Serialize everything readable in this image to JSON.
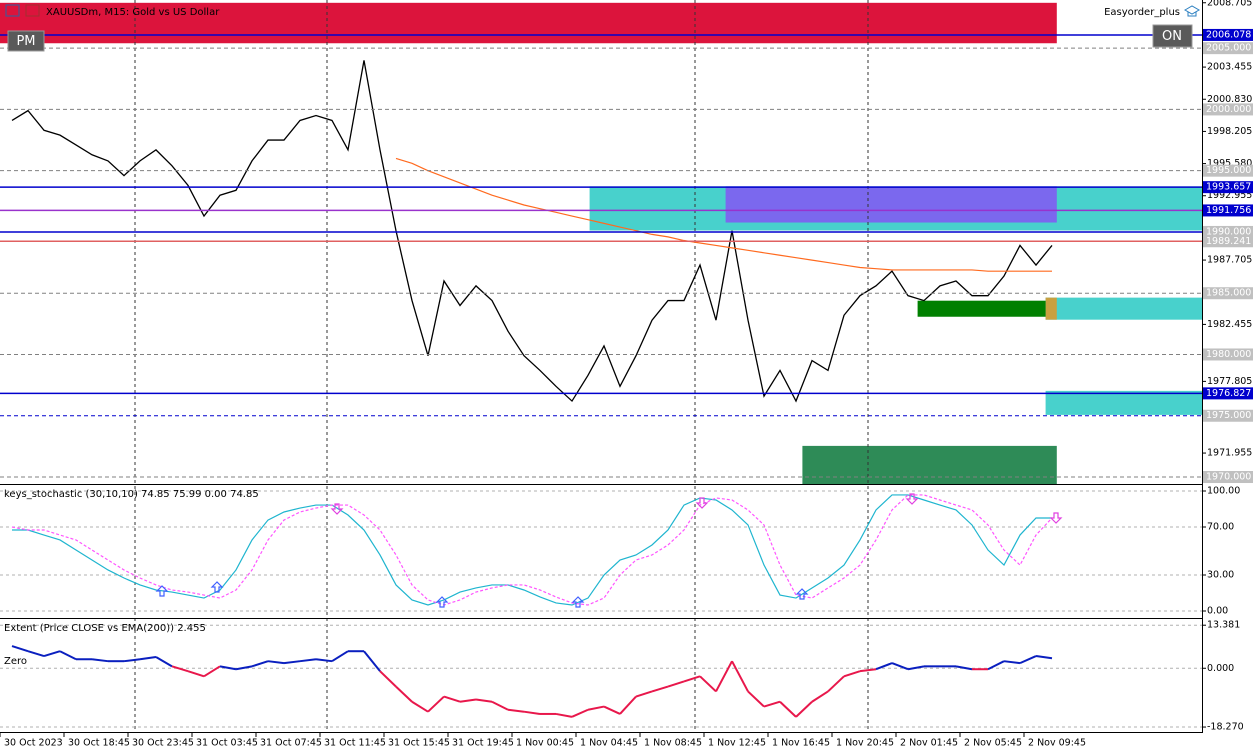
{
  "toolbar": {
    "session": "PM",
    "switch": "ON",
    "expert": "Easyorder_plus"
  },
  "chart_data": [
    {
      "type": "line",
      "title": "XAUUSDm, M15: Gold vs US Dollar",
      "categories": [
        null,
        "30 Oct 2023",
        null,
        null,
        null,
        "30 Oct 18:45",
        null,
        null,
        null,
        "30 Oct 23:45",
        null,
        null,
        null,
        "31 Oct 03:45",
        null,
        null,
        null,
        "31 Oct 07:45",
        null,
        null,
        null,
        "31 Oct 11:45",
        null,
        null,
        null,
        "31 Oct 15:45",
        null,
        null,
        null,
        "31 Oct 19:45",
        null,
        null,
        null,
        "1 Nov 00:45",
        null,
        null,
        null,
        "1 Nov 04:45",
        null,
        null,
        null,
        "1 Nov 08:45",
        null,
        null,
        null,
        "1 Nov 12:45",
        null,
        null,
        null,
        "1 Nov 16:45",
        null,
        null,
        null,
        "1 Nov 20:45",
        null,
        null,
        null,
        "2 Nov 01:45",
        null,
        null,
        null,
        "2 Nov 05:45",
        null,
        null,
        null,
        "2 Nov 09:45"
      ],
      "series": [
        {
          "color": "#000000",
          "values": [
            1999.1,
            1999.9,
            1998.3,
            1997.9,
            1997.1,
            1996.3,
            1995.8,
            1994.6,
            1995.8,
            1996.7,
            1995.4,
            1993.8,
            1991.3,
            1993.0,
            1993.4,
            1995.8,
            1997.5,
            1997.5,
            1999.1,
            1999.5,
            1999.1,
            1996.7,
            2004.0,
            1996.7,
            1990.1,
            1984.4,
            1979.9,
            1986.0,
            1984.0,
            1985.6,
            1984.4,
            1981.9,
            1979.9,
            1978.7,
            1977.4,
            1976.2,
            1978.3,
            1980.7,
            1977.4,
            1979.9,
            1982.8,
            1984.4,
            1984.4,
            1987.3,
            1982.8,
            1990.1,
            1982.8,
            1976.6,
            1978.7,
            1976.2,
            1979.5,
            1978.7,
            1983.2,
            1984.8,
            1985.6,
            1986.8,
            1984.8,
            1984.4,
            1985.6,
            1986.0,
            1984.8,
            1984.8,
            1986.4,
            1988.9,
            1987.3,
            1988.9
          ]
        },
        {
          "color": "#ff6a1f",
          "values": [
            null,
            null,
            null,
            null,
            null,
            null,
            null,
            null,
            null,
            null,
            null,
            null,
            null,
            null,
            null,
            null,
            null,
            null,
            null,
            null,
            null,
            null,
            null,
            null,
            1996.0,
            1995.6,
            1995.0,
            1994.5,
            1994.0,
            1993.5,
            1993.0,
            1992.6,
            1992.2,
            1991.9,
            1991.6,
            1991.3,
            1991.0,
            1990.7,
            1990.4,
            1990.1,
            1989.8,
            1989.6,
            1989.3,
            1989.1,
            1988.9,
            1988.7,
            1988.5,
            1988.3,
            1988.1,
            1987.9,
            1987.7,
            1987.5,
            1987.3,
            1987.1,
            1987.0,
            1986.9,
            1986.9,
            1986.9,
            1986.9,
            1986.9,
            1986.9,
            1986.8,
            1986.8,
            1986.8,
            1986.8,
            1986.8
          ]
        }
      ],
      "ylim": [
        1969.43,
        2008.93
      ],
      "yticks": [
        2008.705,
        2003.455,
        {
          "value": 2000.83,
          "label": "2000.830"
        },
        1998.205,
        {
          "value": 1995.58,
          "label": "1995.580"
        },
        1992.955,
        1987.705,
        1982.455,
        1977.805,
        1971.955
      ],
      "zones": [
        {
          "ylim": [
            2005.4,
            2008.7
          ],
          "x": [
            -0.75,
            65.3
          ],
          "color": "#dc143c"
        },
        {
          "ylim": [
            1990.12,
            1993.72
          ],
          "x": [
            36.1,
            74.4
          ],
          "color": "#48d1cc"
        },
        {
          "ylim": [
            1990.77,
            1993.72
          ],
          "x": [
            44.6,
            65.3
          ],
          "color": "#7b68ee"
        },
        {
          "ylim": [
            1982.84,
            1984.64
          ],
          "x": [
            64.6,
            74.4
          ],
          "color": "#48d1cc"
        },
        {
          "ylim": [
            1982.84,
            1984.64
          ],
          "x": [
            64.6,
            65.3
          ],
          "color": "#c8a040"
        },
        {
          "ylim": [
            1983.08,
            1984.39
          ],
          "x": [
            56.6,
            64.6
          ],
          "color": "#008000"
        },
        {
          "ylim": [
            1975.07,
            1977.03
          ],
          "x": [
            64.6,
            74.4
          ],
          "color": "#48d1cc"
        },
        {
          "ylim": [
            1969.43,
            1972.54
          ],
          "x": [
            49.4,
            65.3
          ],
          "color": "#2e8b57"
        }
      ],
      "levels": [
        {
          "value": 2006.078,
          "label": "2006.078",
          "color": "#0000cd",
          "dash": false,
          "box_color": "#0000cd",
          "text_color": "#ffffff"
        },
        {
          "value": 2005,
          "label": "2005.000",
          "color": "#808080",
          "dash": true,
          "box_color": "#c0c0c0",
          "text_color": "#ffffff"
        },
        {
          "value": 2000,
          "label": "2000.000",
          "color": "#808080",
          "dash": true,
          "box_color": "#c0c0c0",
          "text_color": "#ffffff"
        },
        {
          "value": 1995,
          "label": "1995.000",
          "color": "#808080",
          "dash": true,
          "box_color": "#c0c0c0",
          "text_color": "#ffffff"
        },
        {
          "value": 1993.657,
          "label": "1993.657",
          "color": "#0000cd",
          "dash": false,
          "box_color": "#0000cd",
          "text_color": "#ffffff"
        },
        {
          "value": 1991.756,
          "label": "1991.756",
          "color": "#9932cc",
          "dash": false,
          "box_color": "#0000cd",
          "text_color": "#ffffff"
        },
        {
          "value": 1990,
          "label": "1990.000",
          "color": "#0000cd",
          "dash": false,
          "box_color": "#c0c0c0",
          "text_color": "#ffffff"
        },
        {
          "value": 1989.241,
          "label": "1989.241",
          "color": "#e06060",
          "dash": false,
          "box_color": "#c0c0c0",
          "text_color": "#ffffff"
        },
        {
          "value": 1985,
          "label": "1985.000",
          "color": "#808080",
          "dash": true,
          "box_color": "#c0c0c0",
          "text_color": "#ffffff"
        },
        {
          "value": 1980,
          "label": "1980.000",
          "color": "#808080",
          "dash": true,
          "box_color": "#c0c0c0",
          "text_color": "#ffffff"
        },
        {
          "value": 1976.827,
          "label": "1976.827",
          "color": "#0000cd",
          "dash": false,
          "box_color": "#0000cd",
          "text_color": "#ffffff"
        },
        {
          "value": 1975,
          "label": "1975.000",
          "color": "#0000cd",
          "dash": true,
          "box_color": "#c0c0c0",
          "text_color": "#ffffff"
        },
        {
          "value": 1970,
          "label": "1970.000",
          "color": "#808080",
          "dash": true,
          "box_color": "#c0c0c0",
          "text_color": "#ffffff"
        }
      ]
    },
    {
      "type": "line",
      "title": "keys_stochastic (30,10,10) 74.85 75.99 0.00 74.85",
      "series": [
        {
          "color": "#1fb5cf",
          "dash": false,
          "values": [
            67.5,
            67.5,
            63.3,
            59.2,
            50.8,
            42.5,
            34.2,
            27.5,
            21.7,
            17.5,
            15.8,
            13.3,
            10.8,
            17.5,
            34.2,
            59.2,
            75.8,
            82.5,
            85.8,
            88.3,
            88.3,
            80,
            67.5,
            46.7,
            21.7,
            9.2,
            5,
            9.2,
            15.8,
            19.2,
            21.7,
            21.7,
            17.5,
            11.7,
            6.7,
            5,
            10.8,
            30,
            42.5,
            46.7,
            55,
            67.5,
            88.3,
            94.2,
            92.5,
            84.2,
            71.7,
            38.3,
            13.3,
            10.8,
            19.2,
            27.5,
            38.3,
            59.2,
            84.2,
            96.7,
            96.7,
            92.5,
            88.3,
            84.2,
            71.7,
            50.8,
            38.3,
            63.3,
            77.5,
            77.5
          ]
        },
        {
          "color": "#ff55ff",
          "dash": true,
          "values": [
            70,
            67.5,
            67.5,
            63.3,
            59.2,
            50.8,
            42.5,
            34.2,
            27.5,
            21.7,
            17.5,
            15.8,
            13.3,
            10.8,
            17.5,
            34.2,
            59.2,
            75.8,
            82.5,
            85.8,
            88.3,
            88.3,
            80,
            67.5,
            46.7,
            21.7,
            9.2,
            5,
            9.2,
            15.8,
            19.2,
            21.7,
            21.7,
            17.5,
            11.7,
            6.7,
            5,
            10.8,
            30,
            42.5,
            46.7,
            55,
            67.5,
            88.3,
            94.2,
            92.5,
            84.2,
            71.7,
            38.3,
            13.3,
            10.8,
            19.2,
            27.5,
            38.3,
            59.2,
            84.2,
            96.7,
            96.7,
            92.5,
            88.3,
            84.2,
            71.7,
            50.8,
            38.3,
            63.3,
            77.5
          ]
        }
      ],
      "ylim": [
        -5,
        105
      ],
      "yticks": [
        {
          "value": 100,
          "label": "100.00"
        },
        {
          "value": 70,
          "label": "70.00"
        },
        {
          "value": 30,
          "label": "30.00"
        },
        {
          "value": 0,
          "label": "0.00"
        }
      ]
    },
    {
      "type": "line",
      "title": "Extent (Price CLOSE vs EMA(200)) 2.455",
      "zero_label": "Zero",
      "series": [
        {
          "positive_color": "#0a1fbf",
          "negative_color": "#e8174b",
          "values": [
            6.9,
            5.3,
            3.8,
            5.3,
            2.8,
            2.8,
            2.2,
            2.2,
            2.8,
            3.5,
            0.6,
            -0.9,
            -2.5,
            0.6,
            -0.3,
            0.6,
            2.2,
            1.6,
            2.2,
            2.8,
            2.2,
            5.3,
            5.3,
            -0.9,
            -5.7,
            -10.4,
            -13.5,
            -8.8,
            -10.4,
            -9.7,
            -10.4,
            -12.9,
            -13.5,
            -14.2,
            -14.2,
            -15.1,
            -12.9,
            -11.9,
            -14.2,
            -8.8,
            -7.2,
            -5.7,
            -4.1,
            -2.5,
            -7.2,
            2.2,
            -7.2,
            -11.9,
            -10.4,
            -15.1,
            -10.4,
            -7.2,
            -2.5,
            -0.9,
            -0.3,
            1.6,
            -0.3,
            0.6,
            0.6,
            0.6,
            -0.3,
            -0.3,
            2.2,
            1.6,
            3.8,
            3.1
          ]
        }
      ],
      "ylim": [
        -19.5,
        15
      ],
      "yticks": [
        13.381,
        {
          "value": 0,
          "label": "0.000"
        },
        {
          "value": -18.27,
          "label": "-18.270"
        }
      ]
    }
  ]
}
